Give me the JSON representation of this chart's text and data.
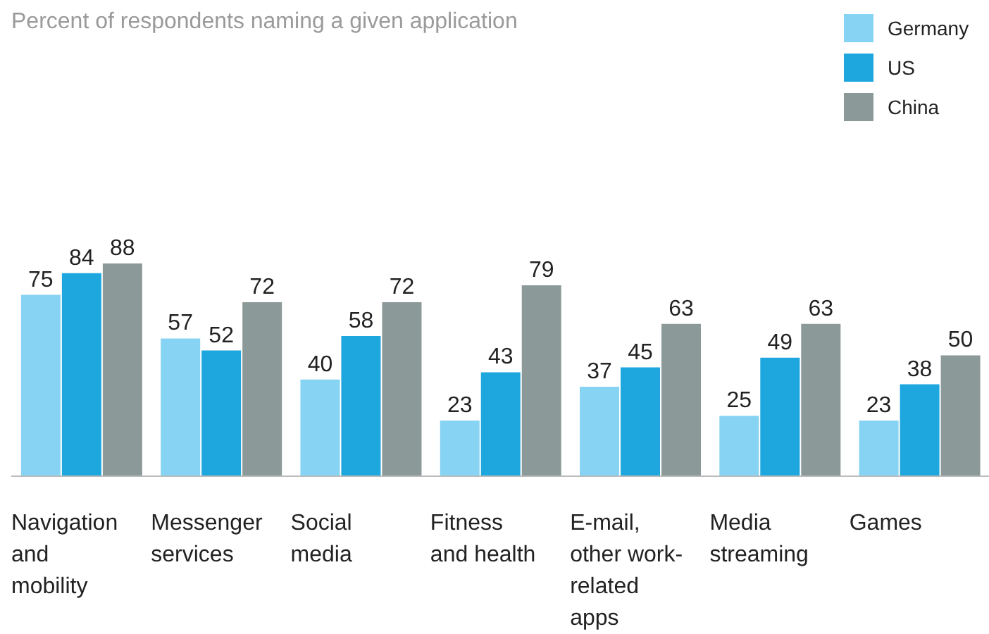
{
  "chart_data": {
    "type": "bar",
    "title": "Percent of respondents naming a given application",
    "categories": [
      "Navigation and mobility",
      "Messenger services",
      "Social media",
      "Fitness and health",
      "E-mail, other work-related apps",
      "Media streaming",
      "Games"
    ],
    "series": [
      {
        "name": "Germany",
        "color": "#87d3f4",
        "values": [
          75,
          57,
          40,
          23,
          37,
          25,
          23
        ]
      },
      {
        "name": "US",
        "color": "#1ea7df",
        "values": [
          84,
          52,
          58,
          43,
          45,
          49,
          38
        ]
      },
      {
        "name": "China",
        "color": "#8b9a98",
        "values": [
          88,
          72,
          72,
          79,
          63,
          63,
          50
        ]
      }
    ],
    "data_labels": true,
    "legend": "top right"
  }
}
